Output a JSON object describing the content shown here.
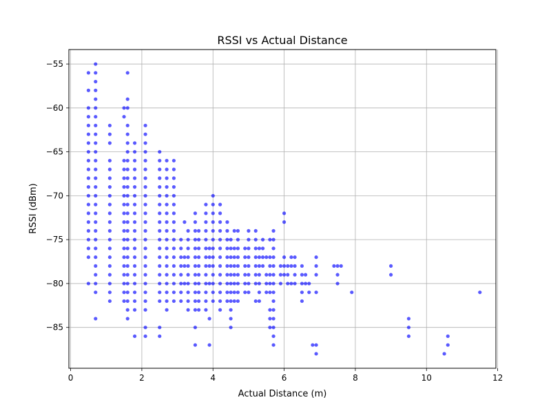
{
  "chart_data": {
    "type": "scatter",
    "title": "RSSI vs Actual Distance",
    "xlabel": "Actual Distance (m)",
    "ylabel": "RSSI (dBm)",
    "xlim": [
      -0.05,
      11.95
    ],
    "ylim": [
      -89.65,
      -53.35
    ],
    "xticks": [
      0,
      2,
      4,
      6,
      8,
      10,
      12
    ],
    "yticks": [
      -85,
      -80,
      -75,
      -70,
      -65,
      -60,
      -55
    ],
    "grid": true,
    "legend": "none",
    "color": "#0000ff",
    "columns": [
      {
        "x": 0.5,
        "y": [
          -56,
          -58,
          -60,
          -61,
          -62,
          -63,
          -64,
          -65,
          -66,
          -67,
          -68,
          -69,
          -70,
          -71,
          -72,
          -73,
          -74,
          -75,
          -76,
          -77,
          -80
        ]
      },
      {
        "x": 0.7,
        "y": [
          -55,
          -56,
          -57,
          -58,
          -59,
          -60,
          -61,
          -62,
          -63,
          -64,
          -65,
          -66,
          -67,
          -68,
          -69,
          -70,
          -71,
          -72,
          -73,
          -74,
          -75,
          -76,
          -77,
          -78,
          -79,
          -80,
          -81,
          -84
        ]
      },
      {
        "x": 1.1,
        "y": [
          -62,
          -63,
          -64,
          -66,
          -67,
          -68,
          -69,
          -70,
          -71,
          -72,
          -73,
          -74,
          -75,
          -76,
          -77,
          -78,
          -79,
          -80,
          -81,
          -82
        ]
      },
      {
        "x": 1.5,
        "y": [
          -60,
          -61,
          -66,
          -67,
          -68,
          -69,
          -70,
          -71,
          -72,
          -73,
          -74,
          -75,
          -76,
          -77,
          -78,
          -79,
          -80,
          -81,
          -82
        ]
      },
      {
        "x": 1.6,
        "y": [
          -56,
          -59,
          -60,
          -62,
          -63,
          -64,
          -65,
          -66,
          -67,
          -68,
          -69,
          -70,
          -71,
          -72,
          -73,
          -74,
          -75,
          -76,
          -77,
          -78,
          -79,
          -80,
          -81,
          -82,
          -83,
          -84
        ]
      },
      {
        "x": 1.8,
        "y": [
          -64,
          -65,
          -66,
          -67,
          -68,
          -69,
          -70,
          -71,
          -72,
          -73,
          -74,
          -75,
          -76,
          -77,
          -78,
          -79,
          -80,
          -81,
          -82,
          -83,
          -86
        ]
      },
      {
        "x": 2.1,
        "y": [
          -62,
          -63,
          -64,
          -65,
          -66,
          -67,
          -68,
          -69,
          -70,
          -71,
          -72,
          -73,
          -74,
          -75,
          -76,
          -77,
          -78,
          -79,
          -80,
          -81,
          -82,
          -83,
          -85,
          -86
        ]
      },
      {
        "x": 2.5,
        "y": [
          -65,
          -66,
          -67,
          -68,
          -69,
          -70,
          -71,
          -72,
          -73,
          -74,
          -75,
          -76,
          -77,
          -78,
          -79,
          -80,
          -81,
          -82,
          -85,
          -86
        ]
      },
      {
        "x": 2.7,
        "y": [
          -66,
          -67,
          -68,
          -69,
          -70,
          -71,
          -72,
          -73,
          -74,
          -75,
          -76,
          -77,
          -78,
          -79,
          -80,
          -81,
          -82,
          -83
        ]
      },
      {
        "x": 2.9,
        "y": [
          -66,
          -67,
          -68,
          -69,
          -70,
          -71,
          -72,
          -73,
          -74,
          -75,
          -76,
          -77,
          -78,
          -79,
          -80,
          -81,
          -82
        ]
      },
      {
        "x": 3.1,
        "y": [
          -75,
          -76,
          -77,
          -78,
          -79,
          -80,
          -81,
          -82
        ]
      },
      {
        "x": 3.2,
        "y": [
          -73,
          -77,
          -78,
          -80
        ]
      },
      {
        "x": 3.3,
        "y": [
          -74,
          -75,
          -76,
          -77,
          -78,
          -79,
          -80,
          -81,
          -82,
          -83
        ]
      },
      {
        "x": 3.5,
        "y": [
          -72,
          -73,
          -74,
          -75,
          -76,
          -77,
          -78,
          -79,
          -80,
          -81,
          -82,
          -83,
          -85,
          -87
        ]
      },
      {
        "x": 3.6,
        "y": [
          -74,
          -75,
          -76,
          -77,
          -78,
          -79,
          -80,
          -81,
          -82,
          -83
        ]
      },
      {
        "x": 3.8,
        "y": [
          -71,
          -72,
          -73,
          -74,
          -75,
          -76,
          -77,
          -78,
          -79,
          -80,
          -81,
          -82,
          -83
        ]
      },
      {
        "x": 3.9,
        "y": [
          -76,
          -77,
          -78,
          -80,
          -84,
          -87
        ]
      },
      {
        "x": 4.0,
        "y": [
          -70,
          -71,
          -72,
          -73,
          -74,
          -75,
          -76,
          -77,
          -78,
          -79,
          -80,
          -81,
          -82
        ]
      },
      {
        "x": 4.2,
        "y": [
          -71,
          -72,
          -73,
          -74,
          -75,
          -76,
          -77,
          -78,
          -79,
          -80,
          -81,
          -82,
          -83
        ]
      },
      {
        "x": 4.4,
        "y": [
          -73,
          -74,
          -75,
          -76,
          -77,
          -78,
          -79,
          -80,
          -81,
          -82
        ]
      },
      {
        "x": 4.5,
        "y": [
          -75,
          -76,
          -77,
          -78,
          -79,
          -80,
          -81,
          -82,
          -83,
          -84,
          -85
        ]
      },
      {
        "x": 4.6,
        "y": [
          -74,
          -76,
          -77,
          -78,
          -79,
          -80,
          -81,
          -82
        ]
      },
      {
        "x": 4.7,
        "y": [
          -74,
          -75,
          -76,
          -77,
          -78,
          -79,
          -80,
          -81,
          -82
        ]
      },
      {
        "x": 4.9,
        "y": [
          -76,
          -77,
          -78,
          -79,
          -80,
          -81
        ]
      },
      {
        "x": 5.0,
        "y": [
          -74,
          -75,
          -76,
          -77,
          -78,
          -79,
          -80,
          -81
        ]
      },
      {
        "x": 5.2,
        "y": [
          -74,
          -75,
          -76,
          -77,
          -78,
          -79,
          -80,
          -82
        ]
      },
      {
        "x": 5.3,
        "y": [
          -76,
          -77,
          -78,
          -79,
          -80,
          -81,
          -82
        ]
      },
      {
        "x": 5.4,
        "y": [
          -75,
          -76,
          -77,
          -78
        ]
      },
      {
        "x": 5.5,
        "y": [
          -77,
          -79,
          -80,
          -81
        ]
      },
      {
        "x": 5.6,
        "y": [
          -75,
          -77,
          -78,
          -79,
          -80,
          -81,
          -83,
          -84,
          -85
        ]
      },
      {
        "x": 5.7,
        "y": [
          -74,
          -75,
          -76,
          -77,
          -78,
          -79,
          -80,
          -81,
          -82,
          -83,
          -84,
          -85,
          -86,
          -87
        ]
      },
      {
        "x": 5.9,
        "y": [
          -78,
          -79,
          -80
        ]
      },
      {
        "x": 6.0,
        "y": [
          -72,
          -73,
          -77,
          -78,
          -79
        ]
      },
      {
        "x": 6.1,
        "y": [
          -78,
          -79,
          -80
        ]
      },
      {
        "x": 6.2,
        "y": [
          -77,
          -78,
          -80
        ]
      },
      {
        "x": 6.3,
        "y": [
          -77,
          -78,
          -79,
          -80
        ]
      },
      {
        "x": 6.5,
        "y": [
          -78,
          -79,
          -80,
          -81,
          -82
        ]
      },
      {
        "x": 6.6,
        "y": [
          -79,
          -80
        ]
      },
      {
        "x": 6.7,
        "y": [
          -80,
          -81
        ]
      },
      {
        "x": 6.8,
        "y": [
          -87
        ]
      },
      {
        "x": 6.9,
        "y": [
          -77,
          -78,
          -79,
          -81,
          -87,
          -88
        ]
      },
      {
        "x": 7.4,
        "y": [
          -78
        ]
      },
      {
        "x": 7.5,
        "y": [
          -78,
          -79,
          -80
        ]
      },
      {
        "x": 7.6,
        "y": [
          -78
        ]
      },
      {
        "x": 7.9,
        "y": [
          -81
        ]
      },
      {
        "x": 9.0,
        "y": [
          -78,
          -79
        ]
      },
      {
        "x": 9.5,
        "y": [
          -84,
          -85,
          -86
        ]
      },
      {
        "x": 10.5,
        "y": [
          -88
        ]
      },
      {
        "x": 10.6,
        "y": [
          -86,
          -87
        ]
      },
      {
        "x": 11.5,
        "y": [
          -81
        ]
      }
    ]
  }
}
